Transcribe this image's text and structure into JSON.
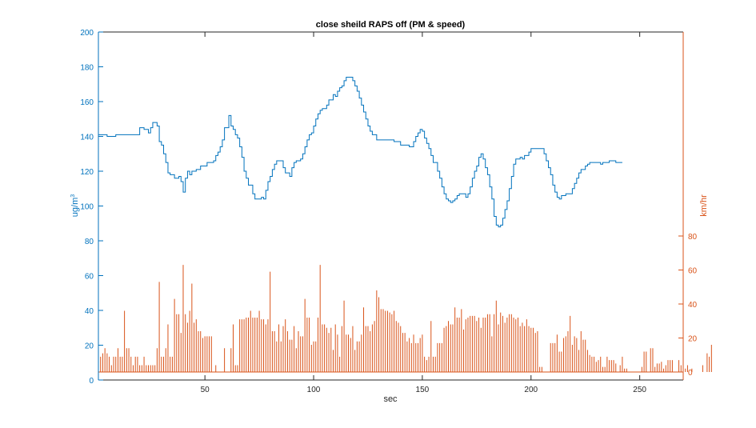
{
  "chart_data": {
    "type": "line",
    "title": "close sheild RAPS off (PM & speed)",
    "xlabel": "sec",
    "xlim": [
      1,
      270
    ],
    "xticks": [
      50,
      100,
      150,
      200,
      250
    ],
    "grid": false,
    "legend": "none",
    "left_axis": {
      "label_base": "ug/m",
      "label_sup": "3",
      "ylim": [
        0,
        200
      ],
      "ticks": [
        0,
        20,
        40,
        60,
        80,
        100,
        120,
        140,
        160,
        180,
        200
      ],
      "color": "#0072BD"
    },
    "right_axis": {
      "label": "km/hr",
      "ylim": [
        0,
        200
      ],
      "ticks": [
        0,
        20,
        40,
        60,
        80
      ],
      "color": "#D95319"
    },
    "series": [
      {
        "axis": "left",
        "plot": "stairs",
        "color": "#0072BD",
        "points": [
          [
            1,
            141
          ],
          [
            3,
            141
          ],
          [
            5,
            140
          ],
          [
            9,
            141
          ],
          [
            18,
            141
          ],
          [
            20,
            145
          ],
          [
            22,
            144
          ],
          [
            24,
            142
          ],
          [
            25,
            145
          ],
          [
            26,
            148
          ],
          [
            27,
            148
          ],
          [
            28,
            146
          ],
          [
            29,
            137
          ],
          [
            30,
            135
          ],
          [
            31,
            130
          ],
          [
            32,
            125
          ],
          [
            33,
            119
          ],
          [
            34,
            118
          ],
          [
            36,
            116
          ],
          [
            38,
            117
          ],
          [
            39,
            114
          ],
          [
            40,
            108
          ],
          [
            41,
            116
          ],
          [
            42,
            120
          ],
          [
            43,
            118
          ],
          [
            44,
            120
          ],
          [
            46,
            121
          ],
          [
            48,
            123
          ],
          [
            50,
            123
          ],
          [
            51,
            125
          ],
          [
            54,
            126
          ],
          [
            55,
            129
          ],
          [
            56,
            131
          ],
          [
            57,
            134
          ],
          [
            58,
            138
          ],
          [
            59,
            145
          ],
          [
            60,
            145
          ],
          [
            61,
            152
          ],
          [
            62,
            146
          ],
          [
            63,
            144
          ],
          [
            64,
            141
          ],
          [
            65,
            139
          ],
          [
            66,
            134
          ],
          [
            67,
            128
          ],
          [
            68,
            120
          ],
          [
            69,
            116
          ],
          [
            70,
            112
          ],
          [
            72,
            107
          ],
          [
            73,
            104
          ],
          [
            74,
            104
          ],
          [
            76,
            105
          ],
          [
            77,
            104
          ],
          [
            78,
            109
          ],
          [
            79,
            114
          ],
          [
            80,
            117
          ],
          [
            81,
            121
          ],
          [
            82,
            124
          ],
          [
            83,
            126
          ],
          [
            86,
            122
          ],
          [
            87,
            119
          ],
          [
            89,
            117
          ],
          [
            90,
            122
          ],
          [
            91,
            125
          ],
          [
            92,
            126
          ],
          [
            94,
            127
          ],
          [
            95,
            130
          ],
          [
            96,
            134
          ],
          [
            97,
            138
          ],
          [
            98,
            141
          ],
          [
            99,
            142
          ],
          [
            100,
            146
          ],
          [
            101,
            150
          ],
          [
            102,
            153
          ],
          [
            103,
            155
          ],
          [
            104,
            156
          ],
          [
            106,
            158
          ],
          [
            107,
            161
          ],
          [
            109,
            164
          ],
          [
            110,
            163
          ],
          [
            111,
            166
          ],
          [
            112,
            168
          ],
          [
            113,
            169
          ],
          [
            114,
            172
          ],
          [
            115,
            174
          ],
          [
            118,
            172
          ],
          [
            119,
            169
          ],
          [
            120,
            166
          ],
          [
            121,
            162
          ],
          [
            122,
            158
          ],
          [
            123,
            154
          ],
          [
            124,
            150
          ],
          [
            125,
            146
          ],
          [
            126,
            143
          ],
          [
            127,
            141
          ],
          [
            129,
            138
          ],
          [
            137,
            137
          ],
          [
            139,
            137
          ],
          [
            140,
            135
          ],
          [
            144,
            134
          ],
          [
            146,
            137
          ],
          [
            147,
            140
          ],
          [
            148,
            142
          ],
          [
            149,
            144
          ],
          [
            150,
            143
          ],
          [
            151,
            139
          ],
          [
            152,
            136
          ],
          [
            153,
            133
          ],
          [
            154,
            129
          ],
          [
            155,
            125
          ],
          [
            157,
            120
          ],
          [
            158,
            116
          ],
          [
            159,
            111
          ],
          [
            160,
            107
          ],
          [
            161,
            104
          ],
          [
            162,
            103
          ],
          [
            163,
            102
          ],
          [
            164,
            103
          ],
          [
            165,
            104
          ],
          [
            166,
            106
          ],
          [
            167,
            107
          ],
          [
            170,
            105
          ],
          [
            171,
            107
          ],
          [
            172,
            111
          ],
          [
            173,
            116
          ],
          [
            174,
            120
          ],
          [
            175,
            123
          ],
          [
            176,
            128
          ],
          [
            177,
            130
          ],
          [
            178,
            127
          ],
          [
            179,
            122
          ],
          [
            180,
            118
          ],
          [
            181,
            111
          ],
          [
            182,
            104
          ],
          [
            183,
            94
          ],
          [
            184,
            89
          ],
          [
            185,
            88
          ],
          [
            186,
            89
          ],
          [
            187,
            93
          ],
          [
            188,
            98
          ],
          [
            189,
            103
          ],
          [
            190,
            110
          ],
          [
            191,
            117
          ],
          [
            192,
            124
          ],
          [
            193,
            127
          ],
          [
            194,
            127
          ],
          [
            195,
            128
          ],
          [
            196,
            127
          ],
          [
            197,
            129
          ],
          [
            199,
            131
          ],
          [
            200,
            133
          ],
          [
            205,
            133
          ],
          [
            206,
            130
          ],
          [
            207,
            126
          ],
          [
            208,
            122
          ],
          [
            209,
            118
          ],
          [
            210,
            112
          ],
          [
            211,
            108
          ],
          [
            212,
            105
          ],
          [
            213,
            104
          ],
          [
            214,
            106
          ],
          [
            216,
            107
          ],
          [
            218,
            107
          ],
          [
            219,
            110
          ],
          [
            220,
            113
          ],
          [
            221,
            116
          ],
          [
            222,
            119
          ],
          [
            223,
            121
          ],
          [
            224,
            121
          ],
          [
            225,
            123
          ],
          [
            226,
            124
          ],
          [
            227,
            125
          ],
          [
            231,
            125
          ],
          [
            232,
            124
          ],
          [
            233,
            125
          ],
          [
            235,
            125
          ],
          [
            236,
            126
          ],
          [
            238,
            126
          ],
          [
            239,
            125
          ],
          [
            241,
            125
          ]
        ]
      },
      {
        "axis": "right",
        "plot": "bars",
        "color": "#D95319",
        "values": [
          0,
          9,
          11,
          14,
          11,
          9,
          4,
          9,
          9,
          14,
          9,
          9,
          36,
          14,
          14,
          9,
          4,
          9,
          9,
          4,
          4,
          9,
          4,
          4,
          4,
          4,
          4,
          14,
          53,
          9,
          9,
          14,
          28,
          9,
          9,
          43,
          34,
          34,
          23,
          63,
          34,
          29,
          36,
          52,
          29,
          31,
          24,
          24,
          20,
          21,
          21,
          21,
          21,
          0,
          4,
          0,
          0,
          0,
          14,
          0,
          0,
          14,
          28,
          4,
          4,
          31,
          31,
          31,
          32,
          32,
          36,
          32,
          32,
          32,
          36,
          31,
          31,
          28,
          31,
          59,
          24,
          24,
          18,
          28,
          18,
          27,
          31,
          24,
          19,
          19,
          27,
          14,
          24,
          21,
          21,
          43,
          32,
          32,
          16,
          18,
          18,
          32,
          63,
          28,
          28,
          26,
          23,
          26,
          13,
          28,
          22,
          9,
          27,
          42,
          22,
          22,
          20,
          27,
          13,
          18,
          18,
          22,
          38,
          27,
          27,
          24,
          28,
          30,
          48,
          44,
          37,
          37,
          36,
          36,
          35,
          34,
          36,
          30,
          29,
          27,
          23,
          23,
          18,
          20,
          17,
          22,
          17,
          17,
          20,
          22,
          9,
          7,
          9,
          30,
          9,
          9,
          17,
          17,
          17,
          26,
          27,
          30,
          28,
          28,
          38,
          32,
          32,
          37,
          25,
          31,
          32,
          33,
          33,
          33,
          30,
          32,
          26,
          32,
          32,
          34,
          34,
          21,
          34,
          42,
          28,
          35,
          33,
          29,
          32,
          34,
          34,
          32,
          31,
          32,
          27,
          29,
          27,
          31,
          27,
          26,
          26,
          23,
          24,
          3,
          3,
          0,
          0,
          0,
          17,
          17,
          17,
          22,
          12,
          12,
          20,
          21,
          24,
          33,
          16,
          21,
          20,
          13,
          24,
          19,
          19,
          13,
          10,
          9,
          9,
          6,
          7,
          9,
          3,
          3,
          9,
          7,
          7,
          7,
          5,
          0,
          4,
          9,
          2,
          2,
          0,
          0,
          0,
          0,
          0,
          0,
          3,
          12,
          12,
          0,
          14,
          14,
          3,
          5,
          5,
          6,
          2,
          4,
          7,
          7,
          7,
          0,
          0,
          7,
          4,
          4,
          2,
          4,
          0,
          2,
          0,
          0,
          0,
          0,
          4,
          0,
          11,
          9,
          16
        ],
        "x_start": 1
      }
    ]
  }
}
